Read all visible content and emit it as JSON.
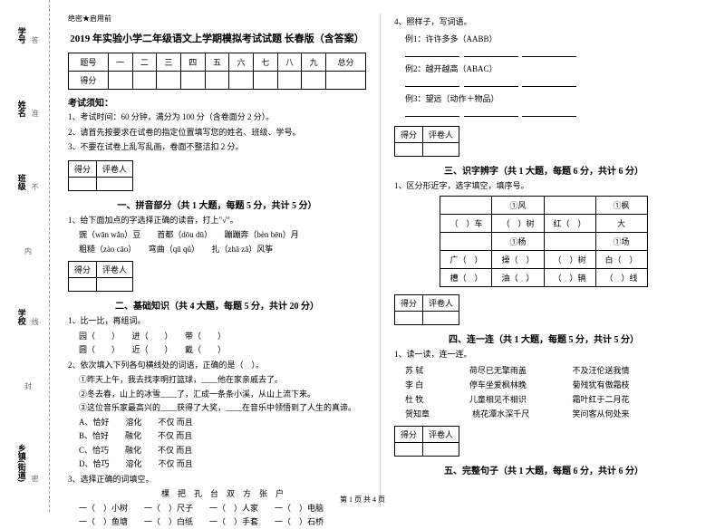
{
  "binding": {
    "labels": [
      "学号",
      "姓名",
      "班级",
      "学校",
      "乡镇(街道)"
    ],
    "sublabels": [
      "答",
      "准",
      "不",
      "内",
      "线",
      "封",
      "密"
    ],
    "marks": [
      "题",
      "",
      "",
      "",
      "",
      ""
    ]
  },
  "header": {
    "tag": "绝密★启用前"
  },
  "title": "2019 年实验小学二年级语文上学期模拟考试试题 长春版（含答案）",
  "scoreTable": {
    "headers": [
      "题号",
      "一",
      "二",
      "三",
      "四",
      "五",
      "六",
      "七",
      "八",
      "九",
      "总分"
    ],
    "row2": "得分"
  },
  "exam": {
    "noticeTitle": "考试须知：",
    "n1": "1、考试时间：60 分钟，满分为 100 分（含卷面分 2 分）。",
    "n2": "2、请首先按要求在试卷的指定位置填写您的姓名、班级、学号。",
    "n3": "3、不要在试卷上乱写乱画，卷面不整洁扣 2 分。"
  },
  "scoreBox": {
    "c1": "得分",
    "c2": "评卷人"
  },
  "sec1": {
    "title": "一、拼音部分（共 1 大题，每题 5 分，共计 5 分）",
    "q1": "1、给下面加点的字选择正确的读音，打上\"√\"。",
    "l1": "豌（wān  wǎn）豆　　首都（dōu  dū）　　蹦蹦奔（bèn  bēn）月",
    "l2": "粗糙（zào  cāo）　　弯曲（qū  qǔ）　　扎（zhā  zā）风筝"
  },
  "sec2": {
    "title": "二、基础知识（共 4 大题，每题 5 分，共计 20 分）",
    "q1": "1、比一比，再组词。",
    "q1l1": "园（　　）　　进（　　）　　带（　　）",
    "q1l2": "圆（　　）　　近（　　）　　戴（　　）",
    "q2": "2、依次填入下列各句横线处的词语，正确的是（　）。",
    "q2l1": "①昨天上午，我去找李明打篮球，____他在家亲戚去了。",
    "q2l2": "②冬去春，山上的冰雪____了，汇成一条条小溪，从山上流下来。",
    "q2l3": "③这位音乐家最高兴的____获得了大奖，____在音乐中领悟到了人生的真谛。",
    "q2a": "A、恰好　　溶化　　不仅 而且",
    "q2b": "B、恰好　　融化　　不仅 而且",
    "q2c": "C、恰巧　　融化　　不仅 而且",
    "q2d": "D、恰巧　　溶化　　不仅 而且",
    "q3": "3、选择正确的词填空。",
    "q3h": "棵　把　孔　台　双　方　张　户",
    "q3l1": "一（　）小树　　一（　）尺子　　一（　）人家　　一（　）电脑",
    "q3l2": "一（　）鱼塘　　一（　）白纸　　一（　）手套　　一（　）石桥"
  },
  "sec4r": {
    "q4": "4、照样子，写词语。",
    "ex1": "例1：许许多多（AABB）",
    "ex2": "例2：越开越高（ABAC）",
    "ex3": "例3：望远（动作＋物品）"
  },
  "sec3": {
    "title": "三、识字辨字（共 1 大题，每题 6 分，共计 6 分）",
    "q1": "1、区分形近字，选字填空，填序号。",
    "t": {
      "r1": [
        "",
        "①风",
        "",
        "①枫"
      ],
      "r2": [
        "（　）车",
        "（　）树",
        "红（　）",
        "大"
      ],
      "r3": [
        "",
        "①杨",
        "",
        "①场"
      ],
      "r4": [
        "广（　）",
        "操（　）",
        "（　）树",
        "白（　）"
      ],
      "r5": [
        "槽（　）",
        "油（　）",
        "（　）辆",
        "（　）线"
      ]
    }
  },
  "sec4": {
    "title": "四、连一连（共 1 大题，每题 5 分，共计 5 分）",
    "q1": "1、读一读，连一连。",
    "rows": [
      [
        "苏 轼",
        "荷尽已无擎雨盖",
        "不及汪伦送我情"
      ],
      [
        "李 白",
        "停车坐爱枫林晚",
        "菊残犹有傲霜枝"
      ],
      [
        "杜 牧",
        "儿童相见不相识",
        "霜叶红于二月花"
      ],
      [
        "贺知章",
        "桃花潭水深千尺",
        "笑问客从何处来"
      ]
    ]
  },
  "sec5": {
    "title": "五、完整句子（共 1 大题，每题 6 分，共计 6 分）"
  },
  "footer": "第 1 页 共 4 页"
}
